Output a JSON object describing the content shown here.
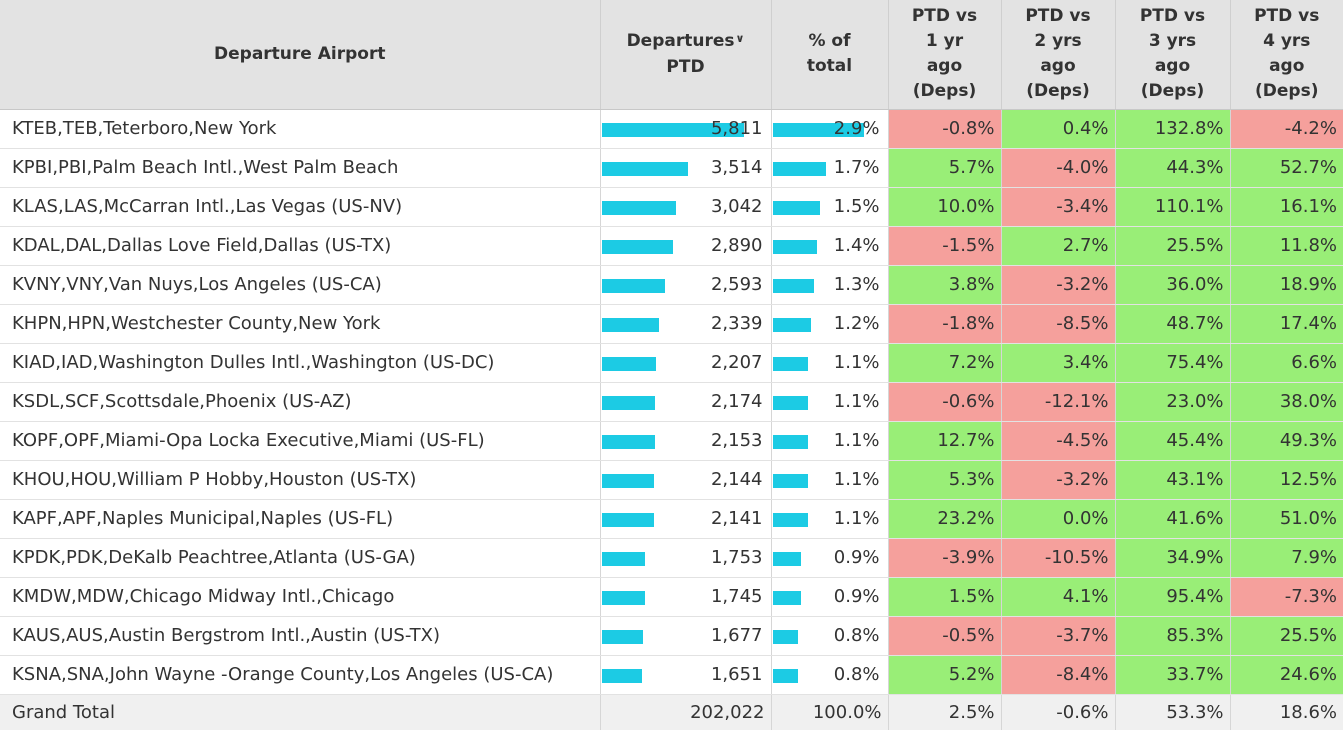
{
  "chart_data": {
    "type": "table",
    "columns": [
      {
        "key": "airport",
        "label_lines": [
          "Departure Airport"
        ]
      },
      {
        "key": "departures",
        "label_lines": [
          "Departures",
          "PTD"
        ],
        "sort_icon": "chevron-down-icon"
      },
      {
        "key": "pct_total",
        "label_lines": [
          "% of",
          "total"
        ]
      },
      {
        "key": "vs1",
        "label_lines": [
          "PTD vs",
          "1 yr",
          "ago",
          "(Deps)"
        ]
      },
      {
        "key": "vs2",
        "label_lines": [
          "PTD vs",
          "2 yrs",
          "ago",
          "(Deps)"
        ]
      },
      {
        "key": "vs3",
        "label_lines": [
          "PTD vs",
          "3 yrs",
          "ago",
          "(Deps)"
        ]
      },
      {
        "key": "vs4",
        "label_lines": [
          "PTD vs",
          "4 yrs",
          "ago",
          "(Deps)"
        ]
      }
    ],
    "bar_max": {
      "departures": 6800,
      "pct_total": 3.5
    },
    "colors": {
      "bar": "#1ccbe4",
      "positive": "#99ee77",
      "negative": "#f5a09c"
    },
    "rows": [
      {
        "airport": "KTEB,TEB,Teterboro,New York",
        "departures": "5,811",
        "departures_value": 5811,
        "pct_total": "2.9%",
        "pct_value": 2.9,
        "vs": [
          "-0.8%",
          "0.4%",
          "132.8%",
          "-4.2%"
        ]
      },
      {
        "airport": "KPBI,PBI,Palm Beach Intl.,West Palm Beach",
        "departures": "3,514",
        "departures_value": 3514,
        "pct_total": "1.7%",
        "pct_value": 1.7,
        "vs": [
          "5.7%",
          "-4.0%",
          "44.3%",
          "52.7%"
        ]
      },
      {
        "airport": "KLAS,LAS,McCarran Intl.,Las Vegas (US-NV)",
        "departures": "3,042",
        "departures_value": 3042,
        "pct_total": "1.5%",
        "pct_value": 1.5,
        "vs": [
          "10.0%",
          "-3.4%",
          "110.1%",
          "16.1%"
        ]
      },
      {
        "airport": "KDAL,DAL,Dallas Love Field,Dallas (US-TX)",
        "departures": "2,890",
        "departures_value": 2890,
        "pct_total": "1.4%",
        "pct_value": 1.4,
        "vs": [
          "-1.5%",
          "2.7%",
          "25.5%",
          "11.8%"
        ]
      },
      {
        "airport": "KVNY,VNY,Van Nuys,Los Angeles (US-CA)",
        "departures": "2,593",
        "departures_value": 2593,
        "pct_total": "1.3%",
        "pct_value": 1.3,
        "vs": [
          "3.8%",
          "-3.2%",
          "36.0%",
          "18.9%"
        ]
      },
      {
        "airport": "KHPN,HPN,Westchester County,New York",
        "departures": "2,339",
        "departures_value": 2339,
        "pct_total": "1.2%",
        "pct_value": 1.2,
        "vs": [
          "-1.8%",
          "-8.5%",
          "48.7%",
          "17.4%"
        ]
      },
      {
        "airport": "KIAD,IAD,Washington Dulles Intl.,Washington (US-DC)",
        "departures": "2,207",
        "departures_value": 2207,
        "pct_total": "1.1%",
        "pct_value": 1.1,
        "vs": [
          "7.2%",
          "3.4%",
          "75.4%",
          "6.6%"
        ]
      },
      {
        "airport": "KSDL,SCF,Scottsdale,Phoenix (US-AZ)",
        "departures": "2,174",
        "departures_value": 2174,
        "pct_total": "1.1%",
        "pct_value": 1.1,
        "vs": [
          "-0.6%",
          "-12.1%",
          "23.0%",
          "38.0%"
        ]
      },
      {
        "airport": "KOPF,OPF,Miami-Opa Locka Executive,Miami (US-FL)",
        "departures": "2,153",
        "departures_value": 2153,
        "pct_total": "1.1%",
        "pct_value": 1.1,
        "vs": [
          "12.7%",
          "-4.5%",
          "45.4%",
          "49.3%"
        ]
      },
      {
        "airport": "KHOU,HOU,William P Hobby,Houston (US-TX)",
        "departures": "2,144",
        "departures_value": 2144,
        "pct_total": "1.1%",
        "pct_value": 1.1,
        "vs": [
          "5.3%",
          "-3.2%",
          "43.1%",
          "12.5%"
        ]
      },
      {
        "airport": "KAPF,APF,Naples Municipal,Naples (US-FL)",
        "departures": "2,141",
        "departures_value": 2141,
        "pct_total": "1.1%",
        "pct_value": 1.1,
        "vs": [
          "23.2%",
          "0.0%",
          "41.6%",
          "51.0%"
        ]
      },
      {
        "airport": "KPDK,PDK,DeKalb Peachtree,Atlanta (US-GA)",
        "departures": "1,753",
        "departures_value": 1753,
        "pct_total": "0.9%",
        "pct_value": 0.9,
        "vs": [
          "-3.9%",
          "-10.5%",
          "34.9%",
          "7.9%"
        ]
      },
      {
        "airport": "KMDW,MDW,Chicago Midway Intl.,Chicago",
        "departures": "1,745",
        "departures_value": 1745,
        "pct_total": "0.9%",
        "pct_value": 0.9,
        "vs": [
          "1.5%",
          "4.1%",
          "95.4%",
          "-7.3%"
        ]
      },
      {
        "airport": "KAUS,AUS,Austin Bergstrom Intl.,Austin (US-TX)",
        "departures": "1,677",
        "departures_value": 1677,
        "pct_total": "0.8%",
        "pct_value": 0.8,
        "vs": [
          "-0.5%",
          "-3.7%",
          "85.3%",
          "25.5%"
        ]
      },
      {
        "airport": "KSNA,SNA,John Wayne -Orange County,Los Angeles (US-CA)",
        "departures": "1,651",
        "departures_value": 1651,
        "pct_total": "0.8%",
        "pct_value": 0.8,
        "vs": [
          "5.2%",
          "-8.4%",
          "33.7%",
          "24.6%"
        ]
      }
    ],
    "total": {
      "label": "Grand Total",
      "departures": "202,022",
      "pct_total": "100.0%",
      "vs": [
        "2.5%",
        "-0.6%",
        "53.3%",
        "18.6%"
      ]
    }
  }
}
